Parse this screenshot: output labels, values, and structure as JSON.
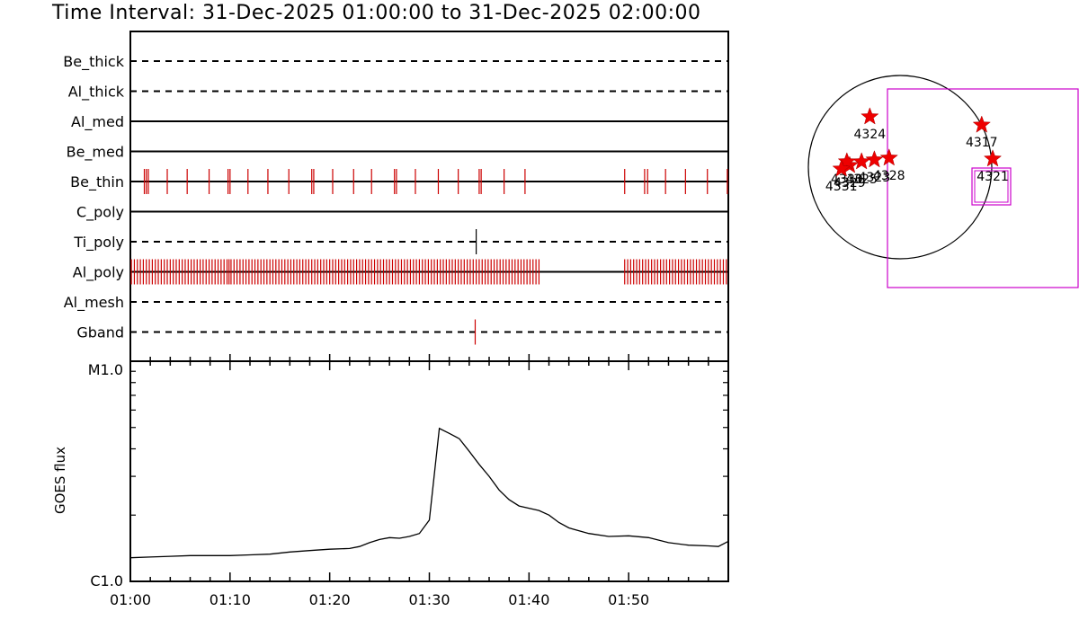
{
  "title": "Time Interval: 31-Dec-2025 01:00:00 to 31-Dec-2025 02:00:00",
  "colors": {
    "axis": "#000000",
    "event": "#cc0000",
    "fov": "#cc00cc",
    "star": "#ee0000"
  },
  "timeline": {
    "start": "01:00",
    "end": "02:00",
    "rows": [
      {
        "label": "Be_thick",
        "style": "dashed",
        "events": []
      },
      {
        "label": "Al_thick",
        "style": "dashed",
        "events": []
      },
      {
        "label": "Al_med",
        "style": "solid",
        "events": []
      },
      {
        "label": "Be_med",
        "style": "solid",
        "events": []
      },
      {
        "label": "Be_thin",
        "style": "solid",
        "color": "#cc0000",
        "events": [
          1.4,
          1.6,
          1.8,
          3.7,
          5.7,
          7.9,
          9.8,
          10.0,
          11.8,
          13.8,
          15.9,
          18.2,
          18.4,
          20.3,
          22.4,
          24.2,
          26.5,
          26.7,
          28.6,
          30.9,
          32.9,
          35.0,
          35.2,
          37.5,
          39.6,
          49.6,
          51.6,
          51.9,
          53.7,
          55.7,
          57.9,
          59.9
        ]
      },
      {
        "label": "C_poly",
        "style": "solid",
        "events": []
      },
      {
        "label": "Ti_poly",
        "style": "dashed",
        "color": "#000000",
        "events": [
          34.7
        ]
      },
      {
        "label": "Al_poly",
        "style": "solid",
        "color": "#cc0000",
        "events": [
          0.1,
          0.4,
          0.7,
          1.0,
          1.3,
          1.6,
          1.9,
          2.2,
          2.5,
          2.8,
          3.1,
          3.4,
          3.7,
          4.0,
          4.3,
          4.6,
          4.9,
          5.2,
          5.5,
          5.8,
          6.1,
          6.4,
          6.7,
          7.0,
          7.3,
          7.6,
          7.9,
          8.2,
          8.5,
          8.8,
          9.1,
          9.4,
          9.7,
          9.9,
          10.1,
          10.4,
          10.7,
          11.0,
          11.3,
          11.6,
          11.9,
          12.2,
          12.5,
          12.8,
          13.1,
          13.4,
          13.7,
          14.0,
          14.3,
          14.6,
          14.9,
          15.2,
          15.5,
          15.8,
          16.1,
          16.4,
          16.7,
          17.0,
          17.3,
          17.6,
          17.9,
          18.2,
          18.5,
          18.8,
          19.1,
          19.4,
          19.7,
          20.0,
          20.3,
          20.6,
          20.9,
          21.2,
          21.5,
          21.8,
          22.1,
          22.4,
          22.7,
          23.0,
          23.3,
          23.6,
          23.9,
          24.2,
          24.5,
          24.8,
          25.1,
          25.4,
          25.7,
          26.0,
          26.3,
          26.6,
          26.9,
          27.2,
          27.5,
          27.8,
          28.1,
          28.4,
          28.7,
          29.0,
          29.3,
          29.6,
          29.9,
          30.2,
          30.5,
          30.8,
          31.1,
          31.4,
          31.7,
          32.0,
          32.3,
          32.6,
          32.9,
          33.2,
          33.5,
          33.8,
          34.1,
          34.4,
          34.7,
          35.0,
          35.3,
          35.6,
          35.9,
          36.2,
          36.5,
          36.8,
          37.1,
          37.4,
          37.7,
          38.0,
          38.3,
          38.6,
          38.9,
          39.2,
          39.5,
          39.8,
          40.1,
          40.4,
          40.7,
          41.0,
          49.6,
          49.9,
          50.2,
          50.5,
          50.8,
          51.1,
          51.4,
          51.7,
          52.0,
          52.3,
          52.6,
          52.9,
          53.2,
          53.5,
          53.8,
          54.1,
          54.4,
          54.7,
          55.0,
          55.3,
          55.6,
          55.9,
          56.2,
          56.5,
          56.8,
          57.1,
          57.4,
          57.7,
          58.0,
          58.3,
          58.6,
          58.9,
          59.2,
          59.5,
          59.8
        ]
      },
      {
        "label": "Al_mesh",
        "style": "dashed",
        "events": []
      },
      {
        "label": "Gband",
        "style": "dashed",
        "color": "#cc0000",
        "events": [
          34.6
        ]
      }
    ]
  },
  "chart_data": {
    "type": "line",
    "title": "",
    "xlabel": "",
    "ylabel": "GOES flux",
    "y_scale": "log",
    "ylim": [
      1e-06,
      1e-05
    ],
    "y_tick_labels": [
      "C1.0",
      "M1.0"
    ],
    "x_tick_labels": [
      "01:00",
      "01:10",
      "01:20",
      "01:30",
      "01:40",
      "01:50"
    ],
    "series": [
      {
        "x": [
          0,
          2,
          4,
          6,
          8,
          10,
          12,
          14,
          16,
          18,
          20,
          22,
          23,
          24,
          25,
          26,
          27,
          28,
          29,
          30,
          31,
          32,
          33,
          34,
          35,
          36,
          37,
          38,
          39,
          40,
          41,
          42,
          43,
          44,
          46,
          48,
          50,
          52,
          54,
          56,
          58,
          59,
          60
        ],
        "y": [
          1.28e-06,
          1.29e-06,
          1.3e-06,
          1.31e-06,
          1.31e-06,
          1.31e-06,
          1.32e-06,
          1.33e-06,
          1.36e-06,
          1.38e-06,
          1.4e-06,
          1.41e-06,
          1.44e-06,
          1.5e-06,
          1.55e-06,
          1.58e-06,
          1.57e-06,
          1.6e-06,
          1.65e-06,
          1.9e-06,
          4.95e-06,
          4.7e-06,
          4.45e-06,
          3.9e-06,
          3.4e-06,
          3e-06,
          2.6e-06,
          2.35e-06,
          2.2e-06,
          2.15e-06,
          2.1e-06,
          2e-06,
          1.85e-06,
          1.75e-06,
          1.65e-06,
          1.6e-06,
          1.61e-06,
          1.58e-06,
          1.5e-06,
          1.46e-06,
          1.45e-06,
          1.44e-06,
          1.52e-06
        ]
      }
    ]
  },
  "map": {
    "regions": [
      {
        "label": "4324",
        "dx": -0.33,
        "dy": -0.55
      },
      {
        "label": "4317",
        "dx": 0.89,
        "dy": -0.46
      },
      {
        "label": "4321",
        "dx": 1.01,
        "dy": -0.09
      },
      {
        "label": "4323",
        "dx": -0.28,
        "dy": -0.08
      },
      {
        "label": "4328",
        "dx": -0.12,
        "dy": -0.1
      },
      {
        "label": "4325",
        "dx": -0.42,
        "dy": -0.06
      },
      {
        "label": "4329",
        "dx": -0.55,
        "dy": -0.02
      },
      {
        "label": "4330",
        "dx": -0.58,
        "dy": -0.06
      },
      {
        "label": "4331",
        "dx": -0.64,
        "dy": 0.02
      }
    ]
  }
}
